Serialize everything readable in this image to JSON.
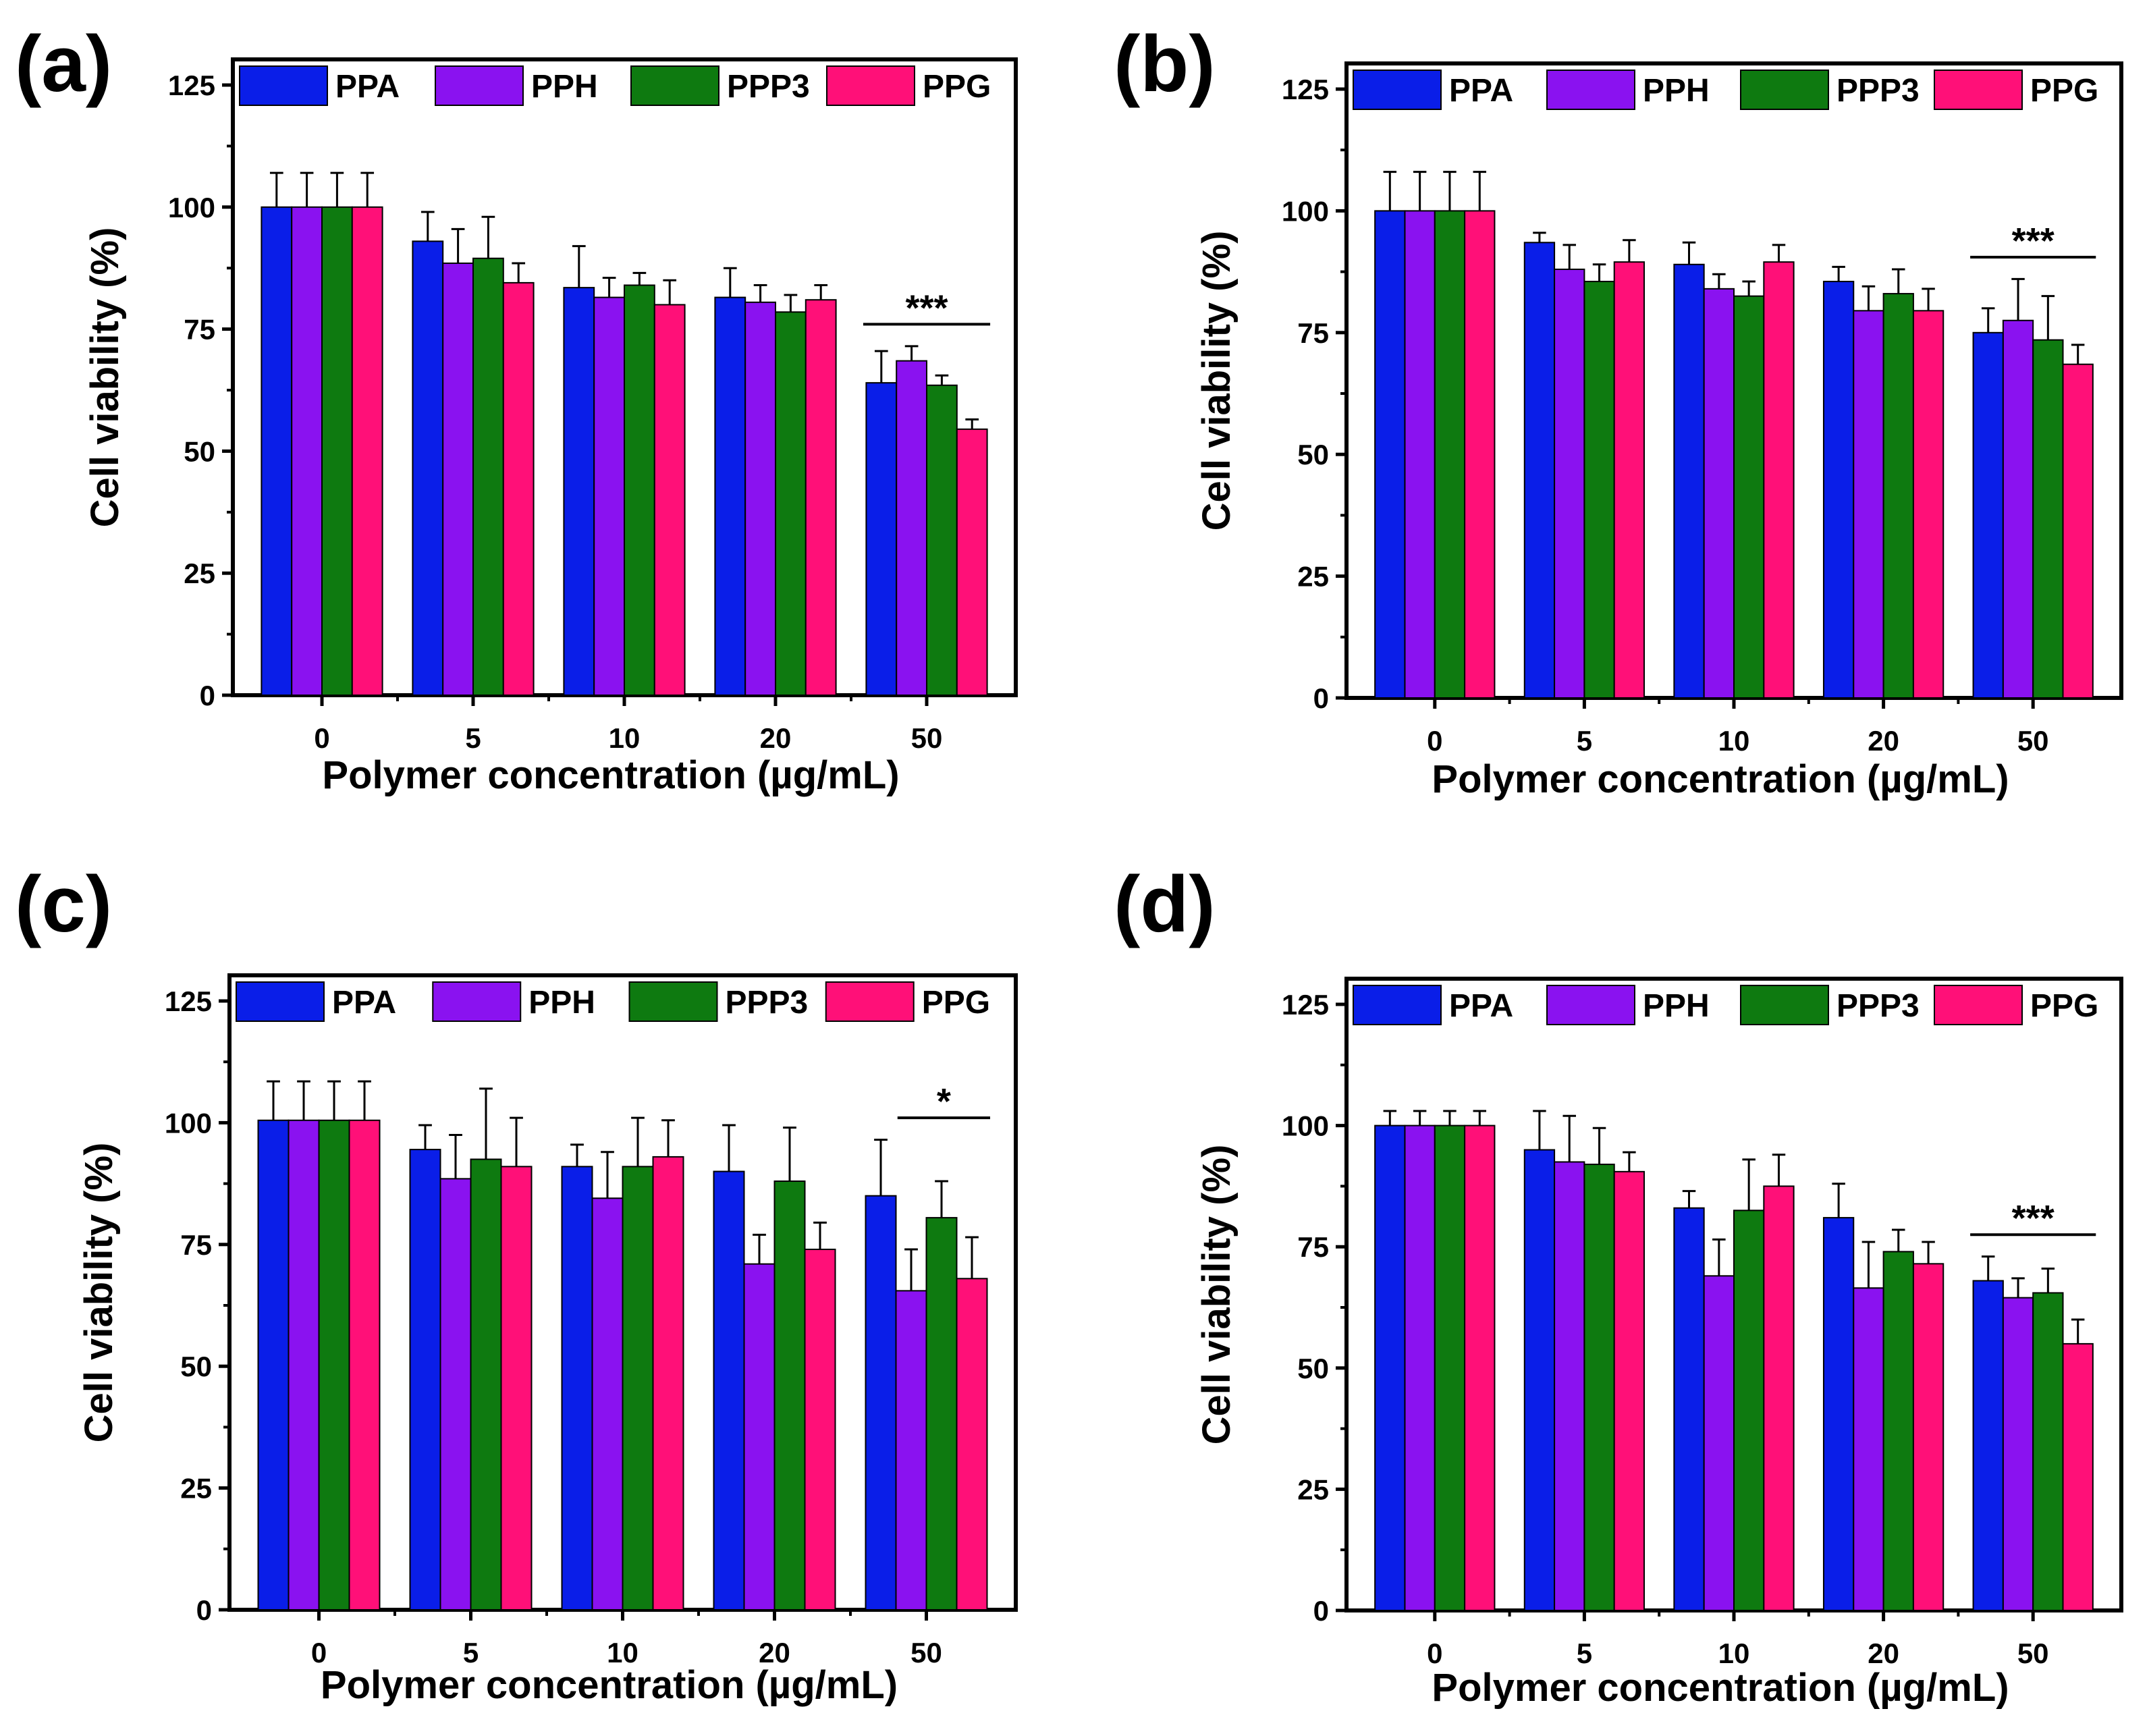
{
  "figure": {
    "series_colors": [
      "#0a1ee8",
      "#8a12f0",
      "#0e7a10",
      "#ff1078"
    ],
    "error_bar_color": "#000000"
  },
  "chart_data": [
    {
      "panel": "(a)",
      "type": "bar",
      "title": "",
      "xlabel": "Polymer concentration (µg/mL)",
      "ylabel": "Cell viability (%)",
      "ylim": [
        0,
        125
      ],
      "yticks": [
        "0",
        "25",
        "50",
        "75",
        "100",
        "125"
      ],
      "categories": [
        "0",
        "5",
        "10",
        "20",
        "50"
      ],
      "legend_position": "top",
      "series": [
        {
          "name": "PPA",
          "values": [
            100,
            93,
            83.5,
            81.5,
            64
          ],
          "errors": [
            7,
            6,
            8.5,
            6,
            6.5
          ]
        },
        {
          "name": "PPH",
          "values": [
            100,
            88.5,
            81.5,
            80.5,
            68.5
          ],
          "errors": [
            7,
            7,
            4,
            3.5,
            3
          ]
        },
        {
          "name": "PPP3",
          "values": [
            100,
            89.5,
            84,
            78.5,
            63.5
          ],
          "errors": [
            7,
            8.5,
            2.5,
            3.5,
            2
          ]
        },
        {
          "name": "PPG",
          "values": [
            100,
            84.5,
            80,
            81,
            54.5
          ],
          "errors": [
            7,
            4,
            5,
            3,
            2
          ]
        }
      ],
      "significance": {
        "label": "***",
        "category": "50"
      }
    },
    {
      "panel": "(b)",
      "type": "bar",
      "title": "",
      "xlabel": "Polymer concentration (µg/mL)",
      "ylabel": "Cell viability (%)",
      "ylim": [
        0,
        125
      ],
      "yticks": [
        "0",
        "25",
        "50",
        "75",
        "100",
        "125"
      ],
      "categories": [
        "0",
        "5",
        "10",
        "20",
        "50"
      ],
      "legend_position": "top",
      "series": [
        {
          "name": "PPA",
          "values": [
            100,
            93.5,
            89,
            85.5,
            75
          ],
          "errors": [
            8,
            2,
            4.5,
            3,
            5
          ]
        },
        {
          "name": "PPH",
          "values": [
            100,
            88,
            84,
            79.5,
            77.5
          ],
          "errors": [
            8,
            5,
            3,
            5,
            8.5
          ]
        },
        {
          "name": "PPP3",
          "values": [
            100,
            85.5,
            82.5,
            83,
            73.5
          ],
          "errors": [
            8,
            3.5,
            3,
            5,
            9
          ]
        },
        {
          "name": "PPG",
          "values": [
            100,
            89.5,
            89.5,
            79.5,
            68.5
          ],
          "errors": [
            8,
            4.5,
            3.5,
            4.5,
            4
          ]
        }
      ],
      "significance": {
        "label": "***",
        "category": "50"
      }
    },
    {
      "panel": "(c)",
      "type": "bar",
      "title": "",
      "xlabel": "Polymer concentration (µg/mL)",
      "ylabel": "Cell viability (%)",
      "ylim": [
        0,
        125
      ],
      "yticks": [
        "0",
        "25",
        "50",
        "75",
        "100",
        "125"
      ],
      "categories": [
        "0",
        "5",
        "10",
        "20",
        "50"
      ],
      "legend_position": "top",
      "series": [
        {
          "name": "PPA",
          "values": [
            100.5,
            94.5,
            91,
            90,
            85
          ],
          "errors": [
            8,
            5,
            4.5,
            9.5,
            11.5
          ]
        },
        {
          "name": "PPH",
          "values": [
            100.5,
            88.5,
            84.5,
            71,
            65.5
          ],
          "errors": [
            8,
            9,
            9.5,
            6,
            8.5
          ]
        },
        {
          "name": "PPP3",
          "values": [
            100.5,
            92.5,
            91,
            88,
            80.5
          ],
          "errors": [
            8,
            14.5,
            10,
            11,
            7.5
          ]
        },
        {
          "name": "PPG",
          "values": [
            100.5,
            91,
            93,
            74,
            68
          ],
          "errors": [
            8,
            10,
            7.5,
            5.5,
            8.5
          ]
        }
      ],
      "significance": {
        "label": "*",
        "category": "50"
      }
    },
    {
      "panel": "(d)",
      "type": "bar",
      "title": "",
      "xlabel": "Polymer concentration (µg/mL)",
      "ylabel": "Cell viability (%)",
      "ylim": [
        0,
        125
      ],
      "yticks": [
        "0",
        "25",
        "50",
        "75",
        "100",
        "125"
      ],
      "categories": [
        "0",
        "5",
        "10",
        "20",
        "50"
      ],
      "legend_position": "top",
      "series": [
        {
          "name": "PPA",
          "values": [
            100,
            95,
            83,
            81,
            68
          ],
          "errors": [
            3,
            8,
            3.5,
            7,
            5
          ]
        },
        {
          "name": "PPH",
          "values": [
            100,
            92.5,
            69,
            66.5,
            64.5
          ],
          "errors": [
            3,
            9.5,
            7.5,
            9.5,
            4
          ]
        },
        {
          "name": "PPP3",
          "values": [
            100,
            92,
            82.5,
            74,
            65.5
          ],
          "errors": [
            3,
            7.5,
            10.5,
            4.5,
            5
          ]
        },
        {
          "name": "PPG",
          "values": [
            100,
            90.5,
            87.5,
            71.5,
            55
          ],
          "errors": [
            3,
            4,
            6.5,
            4.5,
            5
          ]
        }
      ],
      "significance": {
        "label": "***",
        "category": "50"
      }
    }
  ]
}
